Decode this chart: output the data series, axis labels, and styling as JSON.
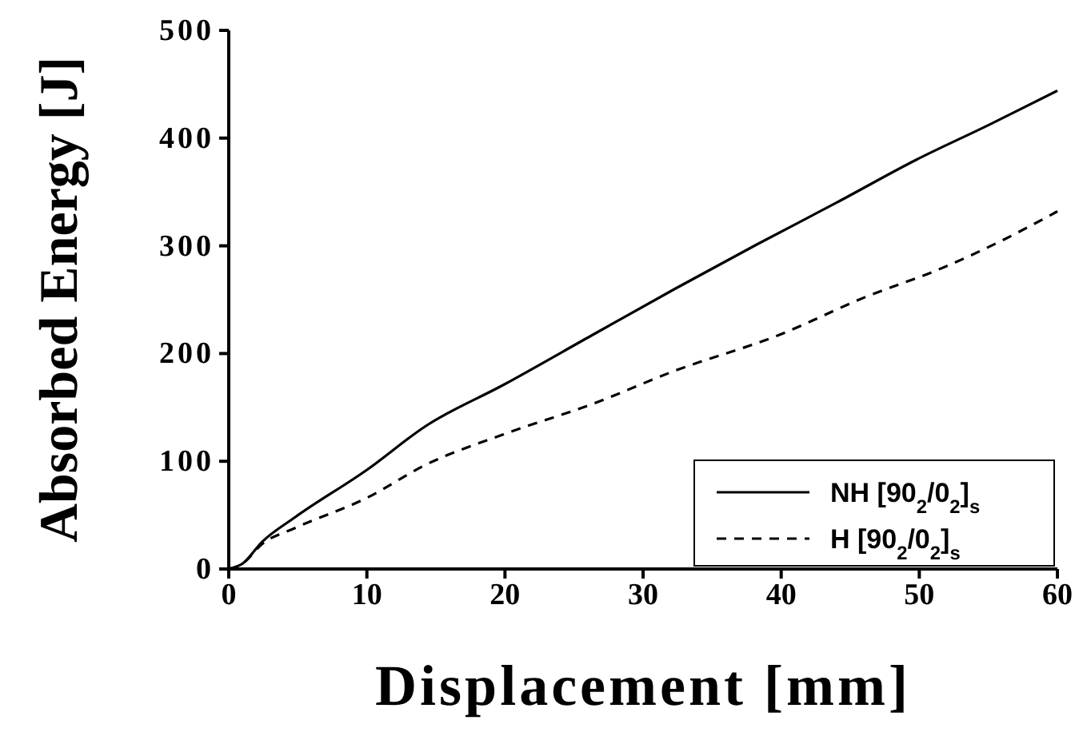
{
  "chart_data": {
    "type": "line",
    "xlabel": "Displacement [mm]",
    "ylabel": "Absorbed Energy [J]",
    "xlim": [
      0,
      60
    ],
    "xticks": [
      0,
      10,
      20,
      30,
      40,
      50,
      60
    ],
    "ylim": [
      0,
      500
    ],
    "yticks": [
      0,
      100,
      200,
      300,
      400,
      500
    ],
    "legend": "bottom right",
    "grid": false,
    "series": [
      {
        "name": "NH [90$_{2}$/0$_{2}$]$_{s}$",
        "color": "#000000",
        "line_style": "solid",
        "x": [
          0,
          1,
          2.4,
          4.8,
          10,
          14.3,
          19.9,
          26.3,
          32.3,
          38.2,
          44,
          49.8,
          55,
          60
        ],
        "values": [
          0,
          5,
          25,
          48,
          92,
          133,
          171,
          217,
          260,
          301,
          340,
          380,
          412,
          444
        ]
      },
      {
        "name": "H [90$_{2}$/0$_{2}$]$_{s}$",
        "color": "#000000",
        "line_style": "dashed",
        "x": [
          0,
          1,
          2.4,
          4.8,
          10,
          14.3,
          19.9,
          26.3,
          32.3,
          39.8,
          46.2,
          51.4,
          56,
          60
        ],
        "values": [
          0,
          5,
          23,
          38,
          66,
          97,
          125,
          153,
          184,
          217,
          253,
          278,
          305,
          332
        ]
      }
    ]
  }
}
